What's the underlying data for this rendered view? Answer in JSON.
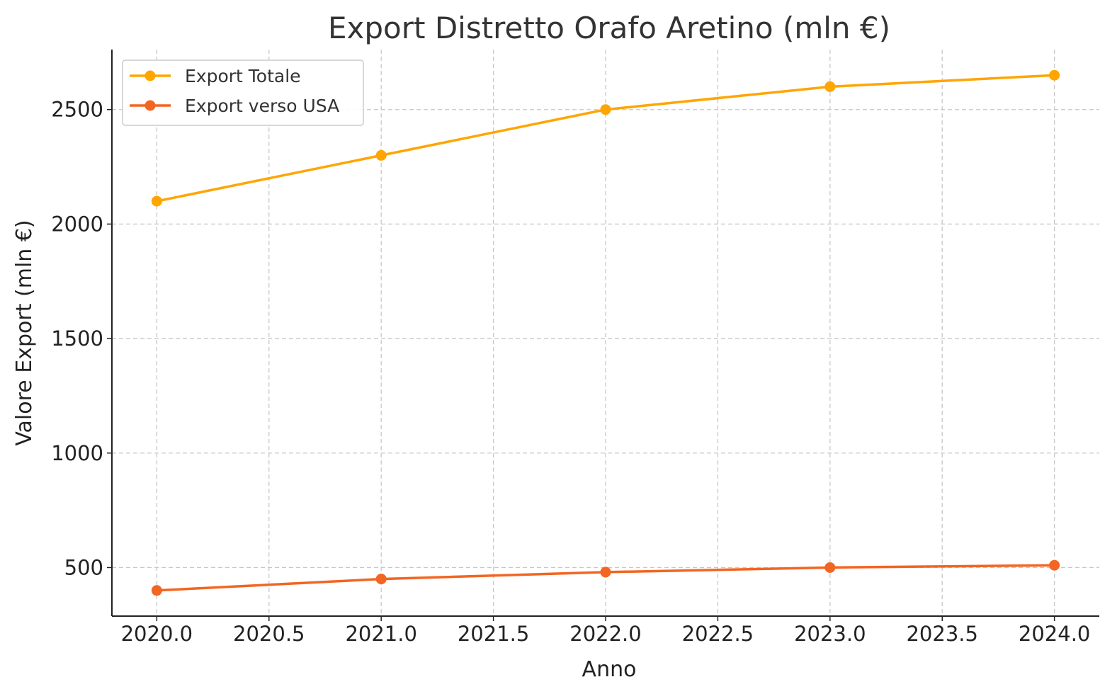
{
  "chart_data": {
    "type": "line",
    "title": "Export Distretto Orafo Aretino (mln €)",
    "xlabel": "Anno",
    "ylabel": "Valore Export (mln €)",
    "x": [
      2020,
      2021,
      2022,
      2023,
      2024
    ],
    "xlim": [
      2019.8,
      2024.2
    ],
    "ylim": [
      288,
      2762
    ],
    "xticks": [
      2020.0,
      2020.5,
      2021.0,
      2021.5,
      2022.0,
      2022.5,
      2023.0,
      2023.5,
      2024.0
    ],
    "xtick_labels": [
      "2020.0",
      "2020.5",
      "2021.0",
      "2021.5",
      "2022.0",
      "2022.5",
      "2023.0",
      "2023.5",
      "2024.0"
    ],
    "yticks": [
      500,
      1000,
      1500,
      2000,
      2500
    ],
    "ytick_labels": [
      "500",
      "1000",
      "1500",
      "2000",
      "2500"
    ],
    "grid": true,
    "legend_position": "top-left",
    "series": [
      {
        "name": "Export Totale",
        "color": "#FFA500",
        "values": [
          2100,
          2300,
          2500,
          2600,
          2650
        ]
      },
      {
        "name": "Export verso USA",
        "color": "#F26522",
        "values": [
          400,
          450,
          480,
          500,
          510
        ]
      }
    ]
  }
}
